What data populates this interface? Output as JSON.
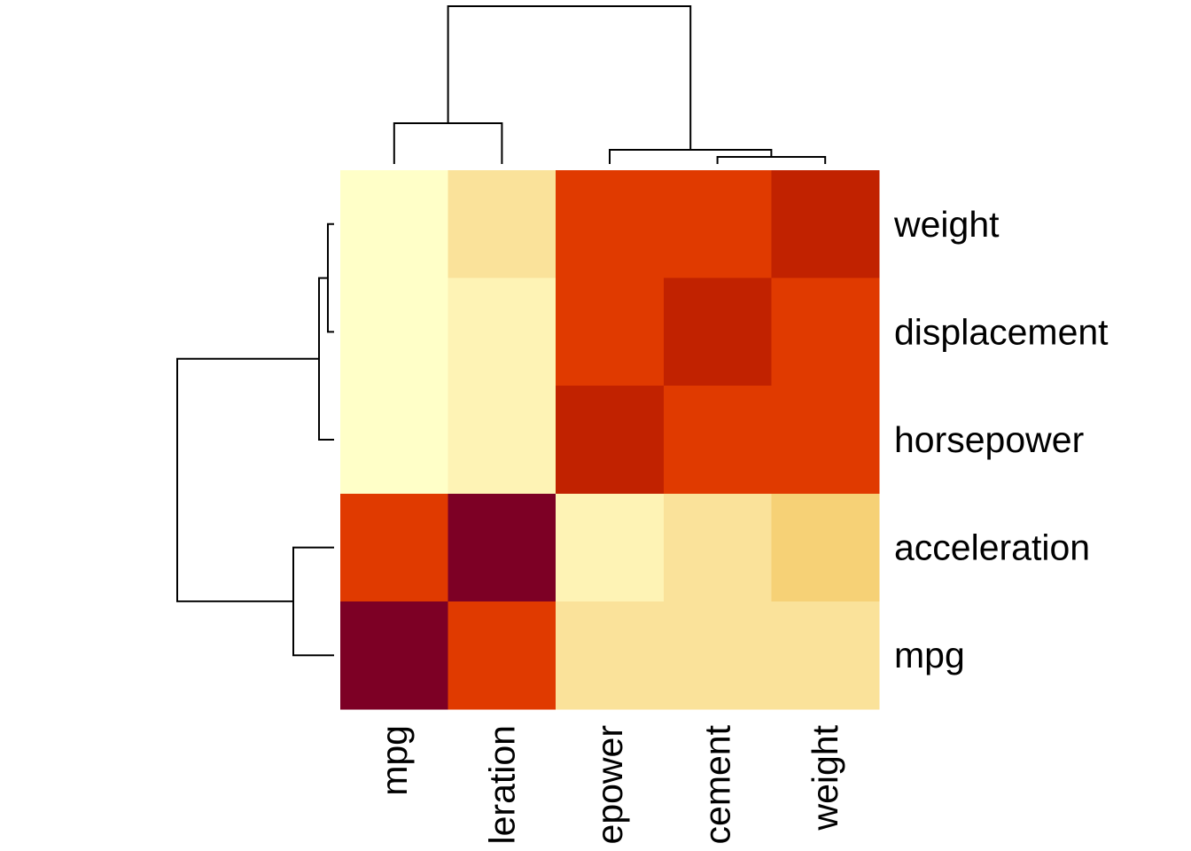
{
  "chart_data": {
    "type": "heatmap",
    "title": "",
    "xlabel": "",
    "ylabel": "",
    "rows": [
      "weight",
      "displacement",
      "horsepower",
      "acceleration",
      "mpg"
    ],
    "columns": [
      "mpg",
      "acceleration",
      "horsepower",
      "displacement",
      "weight"
    ],
    "column_tick_labels": [
      "mpg",
      "leration",
      "epower",
      "cement",
      "weight"
    ],
    "color_scale": "heat (YlOrRd, reversed): low = pale yellow, high = dark red",
    "legend": "none",
    "grid": false,
    "values": [
      [
        0.17,
        0.42,
        0.86,
        0.93,
        1.0
      ],
      [
        0.19,
        0.46,
        0.9,
        1.0,
        0.93
      ],
      [
        0.22,
        0.31,
        1.0,
        0.9,
        0.86
      ],
      [
        0.42,
        1.0,
        0.31,
        0.46,
        0.42
      ],
      [
        1.0,
        0.42,
        0.22,
        0.19,
        0.17
      ]
    ],
    "colors": [
      [
        "#FFFFC8",
        "#FAE29A",
        "#E03A00",
        "#E03A00",
        "#C12200"
      ],
      [
        "#FFFFC8",
        "#FEF3B5",
        "#E03A00",
        "#C12200",
        "#E03A00"
      ],
      [
        "#FFFFC8",
        "#FEF3B5",
        "#C12200",
        "#E03A00",
        "#E03A00"
      ],
      [
        "#E03A00",
        "#7D0025",
        "#FEF3B5",
        "#FAE29A",
        "#F6D176"
      ],
      [
        "#7D0025",
        "#E03A00",
        "#FAE29A",
        "#FAE29A",
        "#FAE29A"
      ]
    ],
    "column_dendrogram": "((mpg, acceleration), (horsepower, (displacement, weight)))",
    "row_dendrogram": "(((weight, displacement), horsepower), (acceleration, mpg))"
  }
}
